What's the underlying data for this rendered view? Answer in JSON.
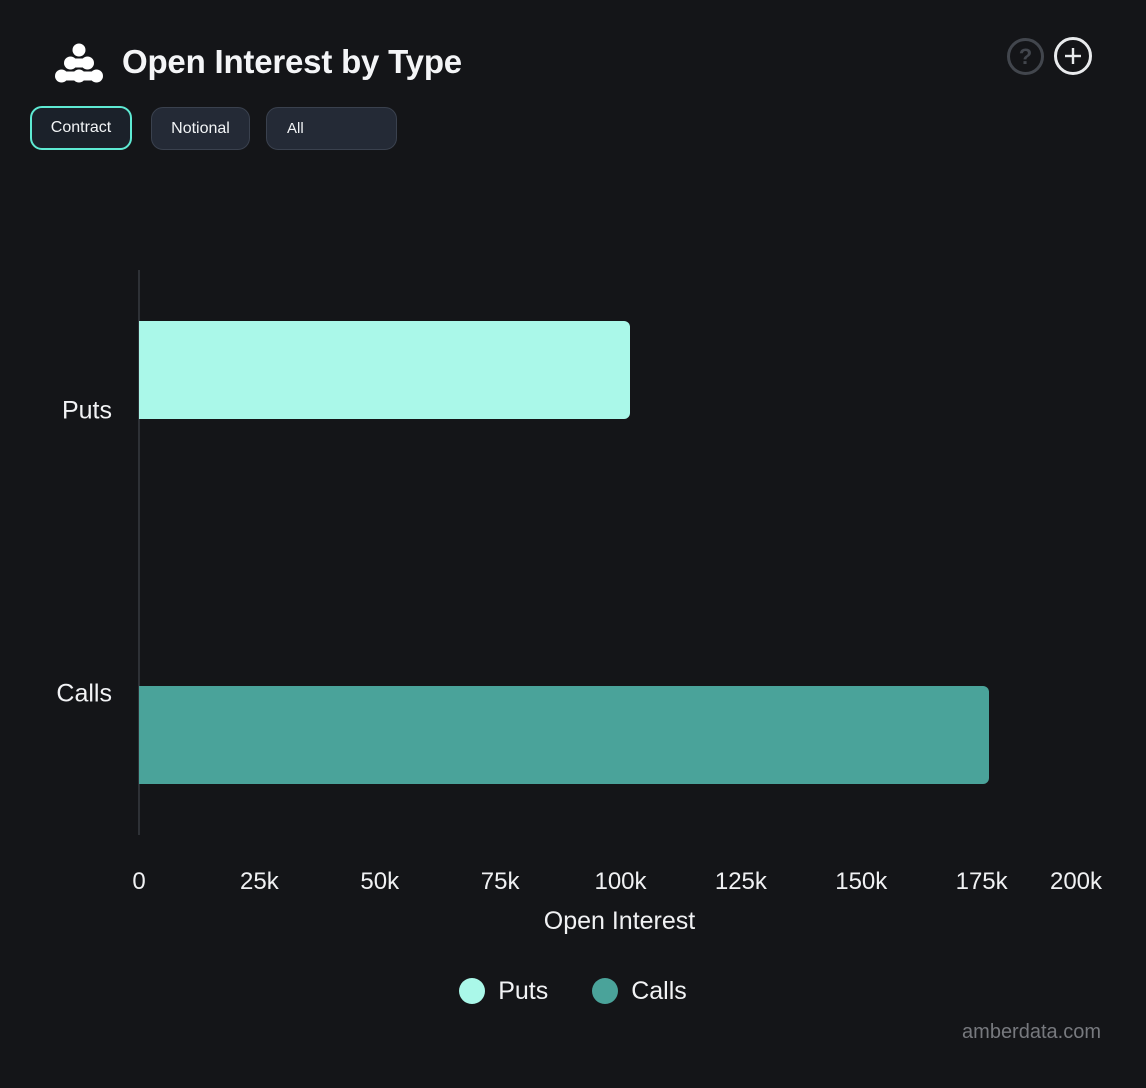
{
  "header": {
    "title": "Open Interest by Type",
    "help_glyph": "?"
  },
  "toolbar": {
    "contract_label": "Contract",
    "notional_label": "Notional",
    "filter_value": "All"
  },
  "chart_data": {
    "type": "bar",
    "orientation": "horizontal",
    "title": "Open Interest by Type",
    "categories": [
      "Puts",
      "Calls"
    ],
    "series": [
      {
        "name": "Puts",
        "color": "#aaf8e9",
        "values": [
          102000,
          null
        ]
      },
      {
        "name": "Calls",
        "color": "#4aa39a",
        "values": [
          null,
          176500
        ]
      }
    ],
    "xlabel": "Open Interest",
    "xlim": [
      0,
      200000
    ],
    "x_ticks": [
      {
        "value": 0,
        "label": "0"
      },
      {
        "value": 25000,
        "label": "25k"
      },
      {
        "value": 50000,
        "label": "50k"
      },
      {
        "value": 75000,
        "label": "75k"
      },
      {
        "value": 100000,
        "label": "100k"
      },
      {
        "value": 125000,
        "label": "125k"
      },
      {
        "value": 150000,
        "label": "150k"
      },
      {
        "value": 175000,
        "label": "175k"
      },
      {
        "value": 200000,
        "label": "200k"
      }
    ],
    "grid": false,
    "legend_position": "bottom"
  },
  "colors": {
    "background": "#141518",
    "puts_mint": "#aaf8e9",
    "calls_teal": "#4aa39a",
    "active_button_border": "#5eead3",
    "axis_line": "#2e3136"
  },
  "watermark": "amberdata.com"
}
